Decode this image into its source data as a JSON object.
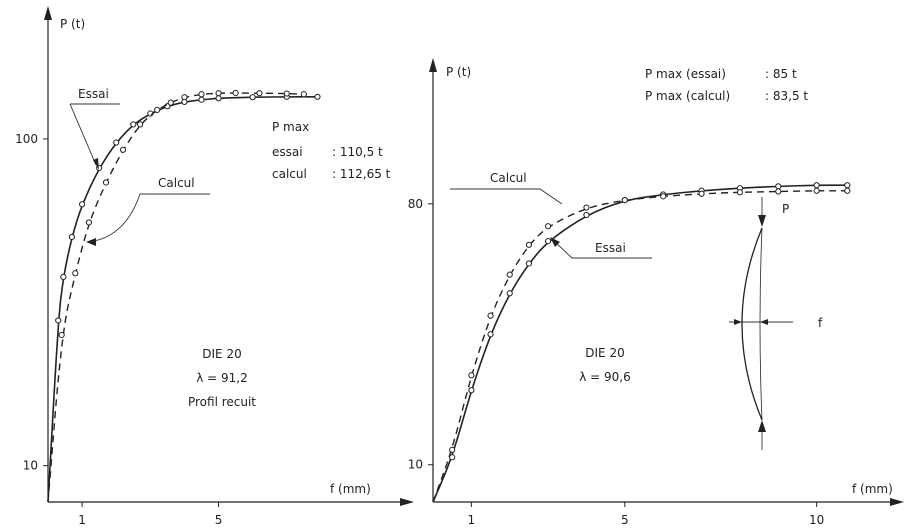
{
  "chart_data": [
    {
      "type": "line",
      "title": "",
      "ylabel": "P (t)",
      "xlabel": "f (mm)",
      "xlim": [
        0,
        9
      ],
      "ylim": [
        0,
        130
      ],
      "x_ticks": [
        1,
        5
      ],
      "y_ticks": [
        10,
        100
      ],
      "series": [
        {
          "name": "Essai",
          "style": "solid",
          "x": [
            0.3,
            0.45,
            0.7,
            1.0,
            1.5,
            2.0,
            2.5,
            3.0,
            3.5,
            4.0,
            4.5,
            5.0,
            6.0,
            7.0,
            7.9
          ],
          "y": [
            50,
            62,
            73,
            82,
            92,
            99,
            104,
            107,
            109,
            110.2,
            110.8,
            111.2,
            111.5,
            111.6,
            111.6
          ]
        },
        {
          "name": "Calcul",
          "style": "dashed",
          "x": [
            0.4,
            0.8,
            1.2,
            1.7,
            2.2,
            2.7,
            3.2,
            3.6,
            4.0,
            4.5,
            5.0,
            5.5,
            6.2,
            7.0,
            7.5
          ],
          "y": [
            46,
            63,
            77,
            88,
            97,
            104,
            108,
            110,
            111.5,
            112.3,
            112.6,
            112.65,
            112.6,
            112.5,
            112.3
          ]
        }
      ],
      "labels": {
        "essai": "Essai",
        "calcul": "Calcul",
        "pmax_title": "P max",
        "pmax_essai_label": "essai",
        "pmax_essai_value": ": 110,5 t",
        "pmax_calcul_label": "calcul",
        "pmax_calcul_value": ": 112,65 t",
        "spec_1": "DIE 20",
        "spec_2": "λ = 91,2",
        "spec_3": "Profil recuit"
      }
    },
    {
      "type": "line",
      "title": "",
      "ylabel": "P (t)",
      "xlabel": "f (mm)",
      "xlim": [
        0,
        11
      ],
      "ylim": [
        0,
        110
      ],
      "x_ticks": [
        1,
        5,
        10
      ],
      "y_ticks": [
        10,
        80
      ],
      "series": [
        {
          "name": "Essai",
          "style": "solid",
          "x": [
            0.5,
            1.0,
            1.5,
            2.0,
            2.5,
            3.0,
            4.0,
            5.0,
            6.0,
            7.0,
            8.0,
            9.0,
            10.0,
            10.8
          ],
          "y": [
            12,
            30,
            45,
            56,
            64,
            70,
            77,
            81,
            82.5,
            83.5,
            84.2,
            84.7,
            85,
            85
          ]
        },
        {
          "name": "Calcul",
          "style": "dashed",
          "x": [
            0.5,
            1.0,
            1.5,
            2.0,
            2.5,
            3.0,
            4.0,
            5.0,
            6.0,
            7.0,
            8.0,
            9.0,
            10.0,
            10.8
          ],
          "y": [
            14,
            34,
            50,
            61,
            69,
            74,
            79,
            81,
            82,
            82.7,
            83.1,
            83.3,
            83.5,
            83.5
          ]
        }
      ],
      "labels": {
        "essai": "Essai",
        "calcul": "Calcul",
        "pmax_essai": "P max (essai)",
        "pmax_essai_value": ": 85 t",
        "pmax_calcul": "P max (calcul)",
        "pmax_calcul_value": ": 83,5 t",
        "spec_1": "DIE 20",
        "spec_2": "λ = 90,6",
        "sketch_p": "P",
        "sketch_f": "f"
      }
    }
  ]
}
